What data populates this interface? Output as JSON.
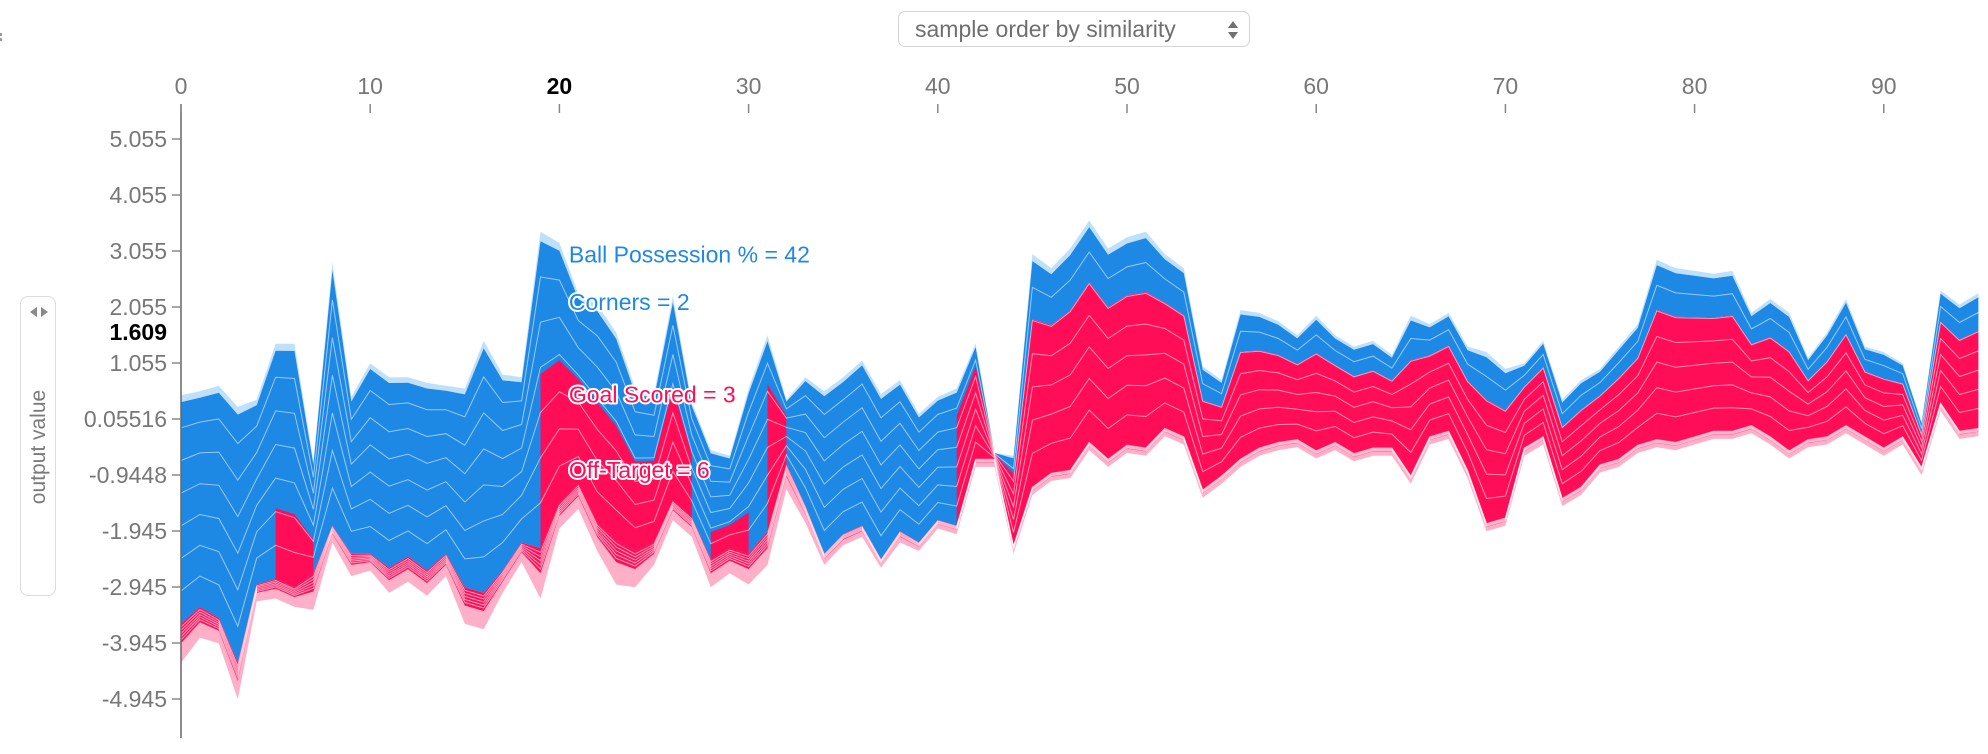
{
  "controls": {
    "ordering_select": {
      "selected": "sample order by similarity",
      "icon": "updown-arrows-icon"
    },
    "y_axis_selector": {
      "label": "output value",
      "icon": "left-right-arrows-icon"
    }
  },
  "colors": {
    "positive": "#ff0d57",
    "negative": "#1e88e5",
    "positive_light": "#ffb0c8",
    "negative_light": "#bfe0fb",
    "axis_text": "#777777",
    "current_value": "#000000"
  },
  "chart_data": {
    "type": "area",
    "title": "",
    "xlabel": "",
    "ylabel": "output value",
    "xlim": [
      0,
      95
    ],
    "ylim": [
      -5.3,
      5.7
    ],
    "x_ticks": [
      0,
      10,
      20,
      30,
      40,
      50,
      60,
      70,
      80,
      90
    ],
    "x_tick_labels": [
      "0",
      "10",
      "20",
      "30",
      "40",
      "50",
      "60",
      "70",
      "80",
      "90"
    ],
    "highlighted_x": 20,
    "y_ticks": [
      5.055,
      4.055,
      3.055,
      2.055,
      1.055,
      0.05516,
      -0.9448,
      -1.945,
      -2.945,
      -3.945,
      -4.945
    ],
    "y_tick_labels": [
      "5.055",
      "4.055",
      "3.055",
      "2.055",
      "1.055",
      "0.05516",
      "-0.9448",
      "-1.945",
      "-2.945",
      "-3.945",
      "-4.945"
    ],
    "current_output_value": "1.609",
    "legend": "none",
    "grid": false,
    "series": [
      {
        "name": "top",
        "points": [
          [
            0,
            0.48
          ],
          [
            1,
            0.55
          ],
          [
            2,
            0.65
          ],
          [
            3,
            0.27
          ],
          [
            4,
            0.4
          ],
          [
            5,
            1.4
          ],
          [
            6,
            1.4
          ],
          [
            7,
            -0.7
          ],
          [
            8,
            2.85
          ],
          [
            9,
            0.45
          ],
          [
            10,
            1.05
          ],
          [
            11,
            0.8
          ],
          [
            12,
            0.8
          ],
          [
            13,
            0.7
          ],
          [
            14,
            0.65
          ],
          [
            15,
            0.6
          ],
          [
            16,
            1.45
          ],
          [
            17,
            0.85
          ],
          [
            18,
            0.8
          ],
          [
            19,
            3.4
          ],
          [
            20,
            3.2
          ],
          [
            21,
            2.3
          ],
          [
            22,
            2.1
          ],
          [
            23,
            1.6
          ],
          [
            24,
            0.6
          ],
          [
            25,
            0.5
          ],
          [
            26,
            2.25
          ],
          [
            27,
            0.35
          ],
          [
            28,
            -0.5
          ],
          [
            29,
            -0.6
          ],
          [
            30,
            0.6
          ],
          [
            31,
            1.55
          ],
          [
            32,
            0.4
          ],
          [
            33,
            0.8
          ],
          [
            34,
            0.55
          ],
          [
            35,
            0.8
          ],
          [
            36,
            1.1
          ],
          [
            37,
            0.5
          ],
          [
            38,
            0.75
          ],
          [
            39,
            0.15
          ],
          [
            40,
            0.45
          ],
          [
            41,
            0.6
          ],
          [
            42,
            1.4
          ],
          [
            43,
            -0.55
          ],
          [
            44,
            -0.6
          ],
          [
            45,
            3.0
          ],
          [
            46,
            2.75
          ],
          [
            47,
            3.1
          ],
          [
            48,
            3.6
          ],
          [
            49,
            3.1
          ],
          [
            50,
            3.3
          ],
          [
            51,
            3.4
          ],
          [
            52,
            3.0
          ],
          [
            53,
            2.75
          ],
          [
            54,
            1.0
          ],
          [
            55,
            0.75
          ],
          [
            56,
            2.0
          ],
          [
            57,
            1.95
          ],
          [
            58,
            1.8
          ],
          [
            59,
            1.55
          ],
          [
            60,
            1.9
          ],
          [
            61,
            1.55
          ],
          [
            62,
            1.35
          ],
          [
            63,
            1.45
          ],
          [
            64,
            1.2
          ],
          [
            65,
            1.9
          ],
          [
            66,
            1.75
          ],
          [
            67,
            1.95
          ],
          [
            68,
            1.35
          ],
          [
            69,
            1.25
          ],
          [
            70,
            0.95
          ],
          [
            71,
            1.05
          ],
          [
            72,
            1.45
          ],
          [
            73,
            0.4
          ],
          [
            74,
            0.75
          ],
          [
            75,
            0.95
          ],
          [
            76,
            1.35
          ],
          [
            77,
            1.75
          ],
          [
            78,
            2.9
          ],
          [
            79,
            2.75
          ],
          [
            80,
            2.7
          ],
          [
            81,
            2.65
          ],
          [
            82,
            2.7
          ],
          [
            83,
            1.95
          ],
          [
            84,
            2.2
          ],
          [
            85,
            1.95
          ],
          [
            86,
            1.15
          ],
          [
            87,
            1.6
          ],
          [
            88,
            2.2
          ],
          [
            89,
            1.35
          ],
          [
            90,
            1.25
          ],
          [
            91,
            1.05
          ],
          [
            92,
            0.0
          ],
          [
            93,
            2.35
          ],
          [
            94,
            2.1
          ],
          [
            95,
            2.3
          ]
        ]
      },
      {
        "name": "base",
        "points": [
          [
            0,
            -3.6
          ],
          [
            1,
            -3.3
          ],
          [
            2,
            -3.5
          ],
          [
            3,
            -4.3
          ],
          [
            4,
            -2.9
          ],
          [
            5,
            -2.8
          ],
          [
            6,
            -2.95
          ],
          [
            7,
            -2.7
          ],
          [
            8,
            -1.85
          ],
          [
            9,
            -2.35
          ],
          [
            10,
            -2.35
          ],
          [
            11,
            -2.6
          ],
          [
            12,
            -2.4
          ],
          [
            13,
            -2.65
          ],
          [
            14,
            -2.35
          ],
          [
            15,
            -2.95
          ],
          [
            16,
            -3.05
          ],
          [
            17,
            -2.65
          ],
          [
            18,
            -2.15
          ],
          [
            19,
            -2.25
          ],
          [
            20,
            -1.45
          ],
          [
            21,
            -1.1
          ],
          [
            22,
            -1.8
          ],
          [
            23,
            -2.1
          ],
          [
            24,
            -2.3
          ],
          [
            25,
            -2.15
          ],
          [
            26,
            -1.4
          ],
          [
            27,
            -1.7
          ],
          [
            28,
            -2.45
          ],
          [
            29,
            -2.25
          ],
          [
            30,
            -2.35
          ],
          [
            31,
            -1.95
          ],
          [
            32,
            -0.75
          ],
          [
            33,
            -1.5
          ],
          [
            34,
            -2.35
          ],
          [
            35,
            -2.0
          ],
          [
            36,
            -1.85
          ],
          [
            37,
            -2.45
          ],
          [
            38,
            -1.95
          ],
          [
            39,
            -2.15
          ],
          [
            40,
            -1.75
          ],
          [
            41,
            -1.85
          ],
          [
            42,
            -0.65
          ],
          [
            43,
            -0.65
          ],
          [
            44,
            -2.2
          ],
          [
            45,
            -1.15
          ],
          [
            46,
            -0.9
          ],
          [
            47,
            -0.85
          ],
          [
            48,
            -0.35
          ],
          [
            49,
            -0.65
          ],
          [
            50,
            -0.4
          ],
          [
            51,
            -0.45
          ],
          [
            52,
            -0.1
          ],
          [
            53,
            -0.25
          ],
          [
            54,
            -1.2
          ],
          [
            55,
            -0.95
          ],
          [
            56,
            -0.65
          ],
          [
            57,
            -0.45
          ],
          [
            58,
            -0.35
          ],
          [
            59,
            -0.3
          ],
          [
            60,
            -0.5
          ],
          [
            61,
            -0.35
          ],
          [
            62,
            -0.55
          ],
          [
            63,
            -0.45
          ],
          [
            64,
            -0.45
          ],
          [
            65,
            -0.95
          ],
          [
            66,
            -0.25
          ],
          [
            67,
            -0.15
          ],
          [
            68,
            -0.85
          ],
          [
            69,
            -1.8
          ],
          [
            70,
            -1.7
          ],
          [
            71,
            -0.45
          ],
          [
            72,
            -0.25
          ],
          [
            73,
            -1.35
          ],
          [
            74,
            -1.15
          ],
          [
            75,
            -0.75
          ],
          [
            76,
            -0.65
          ],
          [
            77,
            -0.4
          ],
          [
            78,
            -0.3
          ],
          [
            79,
            -0.35
          ],
          [
            80,
            -0.25
          ],
          [
            81,
            -0.15
          ],
          [
            82,
            -0.15
          ],
          [
            83,
            -0.05
          ],
          [
            84,
            -0.25
          ],
          [
            85,
            -0.5
          ],
          [
            86,
            -0.3
          ],
          [
            87,
            -0.25
          ],
          [
            88,
            -0.05
          ],
          [
            89,
            -0.25
          ],
          [
            90,
            -0.45
          ],
          [
            91,
            -0.25
          ],
          [
            92,
            -0.8
          ],
          [
            93,
            0.35
          ],
          [
            94,
            -0.15
          ],
          [
            95,
            -0.1
          ]
        ]
      },
      {
        "name": "lower_bottom",
        "points": [
          [
            0,
            -4.3
          ],
          [
            1,
            -3.85
          ],
          [
            2,
            -3.95
          ],
          [
            3,
            -4.95
          ],
          [
            4,
            -3.2
          ],
          [
            5,
            -3.15
          ],
          [
            6,
            -3.3
          ],
          [
            7,
            -3.35
          ],
          [
            8,
            -2.15
          ],
          [
            9,
            -2.75
          ],
          [
            10,
            -2.65
          ],
          [
            11,
            -3.05
          ],
          [
            12,
            -2.85
          ],
          [
            13,
            -3.1
          ],
          [
            14,
            -2.75
          ],
          [
            15,
            -3.6
          ],
          [
            16,
            -3.7
          ],
          [
            17,
            -3.05
          ],
          [
            18,
            -2.5
          ],
          [
            19,
            -3.15
          ],
          [
            20,
            -1.9
          ],
          [
            21,
            -1.55
          ],
          [
            22,
            -2.3
          ],
          [
            23,
            -2.9
          ],
          [
            24,
            -2.95
          ],
          [
            25,
            -2.55
          ],
          [
            26,
            -1.75
          ],
          [
            27,
            -2.05
          ],
          [
            28,
            -2.95
          ],
          [
            29,
            -2.7
          ],
          [
            30,
            -2.9
          ],
          [
            31,
            -2.55
          ],
          [
            32,
            -1.2
          ],
          [
            33,
            -1.8
          ],
          [
            34,
            -2.55
          ],
          [
            35,
            -2.2
          ],
          [
            36,
            -2.05
          ],
          [
            37,
            -2.6
          ],
          [
            38,
            -2.15
          ],
          [
            39,
            -2.3
          ],
          [
            40,
            -1.9
          ],
          [
            41,
            -2.0
          ],
          [
            42,
            -0.8
          ],
          [
            43,
            -0.8
          ],
          [
            44,
            -2.35
          ],
          [
            45,
            -1.3
          ],
          [
            46,
            -1.05
          ],
          [
            47,
            -1.0
          ],
          [
            48,
            -0.5
          ],
          [
            49,
            -0.8
          ],
          [
            50,
            -0.55
          ],
          [
            51,
            -0.6
          ],
          [
            52,
            -0.25
          ],
          [
            53,
            -0.4
          ],
          [
            54,
            -1.35
          ],
          [
            55,
            -1.1
          ],
          [
            56,
            -0.8
          ],
          [
            57,
            -0.6
          ],
          [
            58,
            -0.5
          ],
          [
            59,
            -0.45
          ],
          [
            60,
            -0.65
          ],
          [
            61,
            -0.5
          ],
          [
            62,
            -0.7
          ],
          [
            63,
            -0.6
          ],
          [
            64,
            -0.6
          ],
          [
            65,
            -1.1
          ],
          [
            66,
            -0.4
          ],
          [
            67,
            -0.3
          ],
          [
            68,
            -1.0
          ],
          [
            69,
            -1.95
          ],
          [
            70,
            -1.85
          ],
          [
            71,
            -0.6
          ],
          [
            72,
            -0.4
          ],
          [
            73,
            -1.5
          ],
          [
            74,
            -1.3
          ],
          [
            75,
            -0.9
          ],
          [
            76,
            -0.8
          ],
          [
            77,
            -0.55
          ],
          [
            78,
            -0.45
          ],
          [
            79,
            -0.5
          ],
          [
            80,
            -0.4
          ],
          [
            81,
            -0.3
          ],
          [
            82,
            -0.3
          ],
          [
            83,
            -0.2
          ],
          [
            84,
            -0.4
          ],
          [
            85,
            -0.65
          ],
          [
            86,
            -0.45
          ],
          [
            87,
            -0.4
          ],
          [
            88,
            -0.2
          ],
          [
            89,
            -0.4
          ],
          [
            90,
            -0.6
          ],
          [
            91,
            -0.4
          ],
          [
            92,
            -0.95
          ],
          [
            93,
            0.2
          ],
          [
            94,
            -0.3
          ],
          [
            95,
            -0.25
          ]
        ]
      }
    ],
    "annotations": [
      {
        "text": "Ball Possession % = 42",
        "color": "#1e88e5",
        "x": 20.5,
        "y": 2.85
      },
      {
        "text": "Corners = 2",
        "color": "#1e88e5",
        "x": 20.5,
        "y": 2.0
      },
      {
        "text": "Goal Scored = 3",
        "color": "#ff0d57",
        "x": 20.5,
        "y": 0.35
      },
      {
        "text": "Off-Target = 6",
        "color": "#ff0d57",
        "x": 20.5,
        "y": -1.0
      }
    ]
  }
}
